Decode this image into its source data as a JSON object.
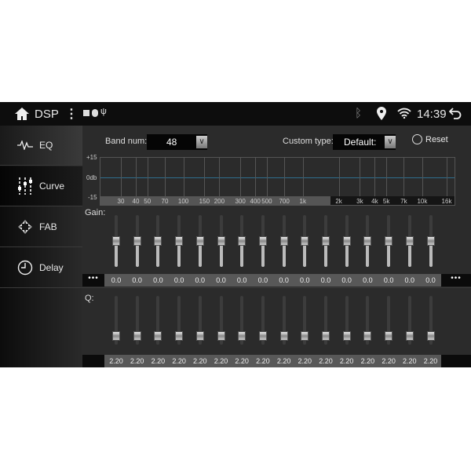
{
  "status": {
    "app_title": "DSP",
    "time": "14:39"
  },
  "sidebar": {
    "items": [
      {
        "label": "EQ"
      },
      {
        "label": "Curve",
        "selected": true
      },
      {
        "label": "FAB"
      },
      {
        "label": "Delay"
      }
    ]
  },
  "controls": {
    "band_num_label": "Band num:",
    "band_num_value": "48",
    "custom_type_label": "Custom type:",
    "custom_type_value": "Default:",
    "reset_label": "Reset"
  },
  "graph": {
    "y_labels": [
      "+15",
      "0db",
      "-15"
    ],
    "freq_labels": [
      "30",
      "40",
      "50",
      "70",
      "100",
      "150",
      "200",
      "300",
      "400",
      "500",
      "700",
      "1k",
      "2k",
      "3k",
      "4k",
      "5k",
      "7k",
      "10k",
      "16k"
    ],
    "freq_values": [
      30,
      40,
      50,
      70,
      100,
      150,
      200,
      300,
      400,
      500,
      700,
      1000,
      2000,
      3000,
      4000,
      5000,
      7000,
      10000,
      16000
    ]
  },
  "gain": {
    "label": "Gain:",
    "range": [
      -15,
      15
    ],
    "values": [
      "0.0",
      "0.0",
      "0.0",
      "0.0",
      "0.0",
      "0.0",
      "0.0",
      "0.0",
      "0.0",
      "0.0",
      "0.0",
      "0.0",
      "0.0",
      "0.0",
      "0.0",
      "0.0"
    ],
    "more": "•••"
  },
  "q": {
    "label": "Q:",
    "values": [
      "2.20",
      "2.20",
      "2.20",
      "2.20",
      "2.20",
      "2.20",
      "2.20",
      "2.20",
      "2.20",
      "2.20",
      "2.20",
      "2.20",
      "2.20",
      "2.20",
      "2.20",
      "2.20"
    ],
    "level_fraction": 0.1
  },
  "colors": {
    "zero_line": "#2f6f8f"
  }
}
